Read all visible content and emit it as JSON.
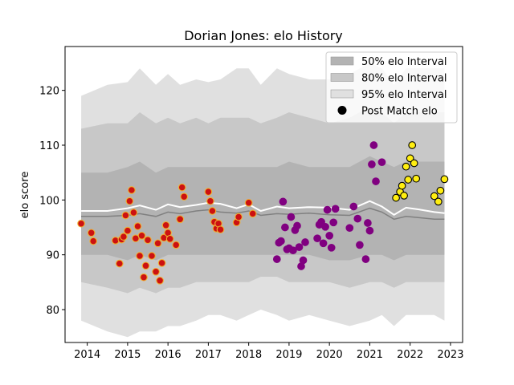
{
  "chart_data": {
    "type": "scatter",
    "title": "Dorian Jones: elo History",
    "xlabel": "",
    "ylabel": "elo score",
    "xlim": [
      2013.45,
      2023.3
    ],
    "ylim": [
      74,
      128
    ],
    "xticks": [
      2014,
      2015,
      2016,
      2017,
      2018,
      2019,
      2020,
      2021,
      2022,
      2023
    ],
    "yticks": [
      80,
      90,
      100,
      110,
      120
    ],
    "grid": false,
    "legend_placement": "top-right",
    "legend": [
      {
        "label": "50% elo Interval",
        "color": "#b3b3b3",
        "kind": "band"
      },
      {
        "label": "80% elo Interval",
        "color": "#c8c8c8",
        "kind": "band"
      },
      {
        "label": "95% elo Interval",
        "color": "#e0e0e0",
        "kind": "band"
      },
      {
        "label": "Post Match elo",
        "color": "#000000",
        "kind": "marker"
      }
    ],
    "colors": {
      "era1_fill": "#cc1111",
      "era1_edge": "#f0b030",
      "era2_fill": "#800080",
      "era2_edge": "#800080",
      "era3_fill": "#ffee11",
      "era3_edge": "#000000",
      "mean_line": "#ffffff",
      "median_line": "#808080"
    },
    "bands": {
      "x": [
        2013.85,
        2014.5,
        2015.0,
        2015.3,
        2015.7,
        2016.0,
        2016.3,
        2016.7,
        2017.0,
        2017.3,
        2017.7,
        2018.0,
        2018.3,
        2018.7,
        2019.0,
        2019.5,
        2020.0,
        2020.5,
        2021.0,
        2021.3,
        2021.6,
        2021.9,
        2022.2,
        2022.6,
        2022.85
      ],
      "p95_hi": [
        119,
        121,
        121.5,
        124,
        121,
        123,
        121,
        122,
        121.5,
        122,
        124,
        124,
        121,
        124,
        123,
        122,
        122,
        123,
        125,
        124,
        121,
        124,
        124,
        124,
        124
      ],
      "p95_lo": [
        78,
        76,
        75,
        76,
        76,
        77,
        77,
        78,
        79,
        79,
        78,
        79,
        80,
        79,
        78,
        79,
        78,
        77,
        78,
        79,
        77,
        79,
        79,
        79,
        78
      ],
      "p80_hi": [
        113,
        114,
        114,
        116,
        114,
        115,
        114,
        115,
        114,
        115,
        115,
        115,
        114,
        115,
        116,
        115,
        114,
        115,
        117,
        116,
        114,
        116,
        116,
        116,
        116
      ],
      "p80_lo": [
        85,
        84,
        83,
        84,
        83,
        84,
        84,
        85,
        85,
        85,
        85,
        85,
        86,
        86,
        85,
        85,
        85,
        84,
        85,
        85,
        84,
        85,
        85,
        85,
        85
      ],
      "p50_hi": [
        105,
        105,
        106,
        107,
        105,
        106,
        106,
        106,
        106,
        106,
        106,
        106,
        106,
        106,
        107,
        106,
        106,
        106,
        108,
        107,
        106,
        107,
        107,
        107,
        107
      ],
      "p50_lo": [
        90,
        90,
        89,
        90,
        89,
        90,
        90,
        90,
        90,
        90,
        90,
        90,
        90,
        90,
        90,
        90,
        89,
        89,
        90,
        90,
        89,
        90,
        90,
        90,
        90
      ],
      "median": [
        97,
        97,
        97.2,
        97.5,
        97,
        97.8,
        97.5,
        98,
        98.2,
        97.8,
        97.6,
        98,
        97.2,
        97.5,
        97.4,
        97.6,
        97.3,
        97.2,
        98.5,
        97.8,
        96.5,
        97,
        96.8,
        96.5,
        96.5
      ],
      "mean": [
        98,
        98,
        98.5,
        99,
        98.2,
        99.2,
        98.7,
        99.1,
        99.5,
        99.3,
        98.5,
        99.2,
        98,
        98.8,
        98.5,
        98.7,
        98.6,
        98.2,
        99.8,
        98.8,
        97.3,
        98.6,
        98.3,
        97.8,
        97.6
      ]
    },
    "series": [
      {
        "era": "era1",
        "x": [
          2013.85,
          2014.1,
          2014.15,
          2014.7,
          2014.8,
          2014.85,
          2014.9,
          2014.95,
          2015.0,
          2015.05,
          2015.1,
          2015.15,
          2015.2,
          2015.25,
          2015.3,
          2015.35,
          2015.4,
          2015.45,
          2015.5,
          2015.6,
          2015.7,
          2015.75,
          2015.8,
          2015.85,
          2015.9,
          2015.95,
          2016.0,
          2016.05,
          2016.2,
          2016.3,
          2016.35,
          2016.4,
          2017.0,
          2017.05,
          2017.1,
          2017.15,
          2017.2,
          2017.25,
          2017.3,
          2017.7,
          2017.75,
          2018.0,
          2018.1
        ],
        "y": [
          95.7,
          94,
          92.5,
          92.6,
          88.4,
          92.8,
          93.3,
          97.2,
          94.4,
          99.8,
          101.8,
          97.7,
          93.0,
          95.2,
          89.8,
          93.5,
          85.9,
          88,
          92.7,
          89.8,
          86.9,
          92.1,
          85.3,
          88.5,
          93.1,
          95.4,
          94.0,
          92.9,
          91.8,
          96.5,
          102.3,
          100.6,
          101.5,
          99.8,
          98,
          96,
          94.8,
          95.7,
          94.6,
          95.9,
          96.9,
          99.5,
          97.5
        ]
      },
      {
        "era": "era2",
        "x": [
          2018.7,
          2018.75,
          2018.8,
          2018.85,
          2018.9,
          2018.95,
          2019.0,
          2019.05,
          2019.1,
          2019.15,
          2019.2,
          2019.25,
          2019.3,
          2019.35,
          2019.4,
          2019.7,
          2019.75,
          2019.8,
          2019.85,
          2019.9,
          2019.95,
          2020.0,
          2020.05,
          2020.1,
          2020.15,
          2020.5,
          2020.6,
          2020.7,
          2020.75,
          2020.9,
          2020.95,
          2021.0,
          2021.05,
          2021.1,
          2021.15,
          2021.3
        ],
        "y": [
          89.2,
          92.2,
          92.5,
          99.7,
          95.0,
          91.0,
          91.2,
          96.9,
          90.8,
          94.5,
          95.3,
          91.4,
          87.9,
          89.0,
          92.3,
          93,
          95.5,
          96,
          92.1,
          95.1,
          98.2,
          93.5,
          91.3,
          95.9,
          98.4,
          94.9,
          98.8,
          96.6,
          91.8,
          89.2,
          95.8,
          94.4,
          106.5,
          110,
          103.4,
          106.9
        ]
      },
      {
        "era": "era3",
        "x": [
          2021.65,
          2021.75,
          2021.8,
          2021.85,
          2021.9,
          2021.95,
          2022.0,
          2022.05,
          2022.1,
          2022.15,
          2022.6,
          2022.7,
          2022.75,
          2022.85
        ],
        "y": [
          100.4,
          101.5,
          102.6,
          100.8,
          106.1,
          103.7,
          107.6,
          110,
          106.7,
          103.9,
          100.7,
          99.7,
          101.7,
          103.8
        ]
      }
    ]
  }
}
